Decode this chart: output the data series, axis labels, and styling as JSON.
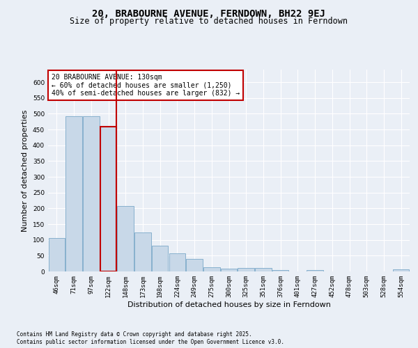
{
  "title1": "20, BRABOURNE AVENUE, FERNDOWN, BH22 9EJ",
  "title2": "Size of property relative to detached houses in Ferndown",
  "xlabel": "Distribution of detached houses by size in Ferndown",
  "ylabel": "Number of detached properties",
  "categories": [
    "46sqm",
    "71sqm",
    "97sqm",
    "122sqm",
    "148sqm",
    "173sqm",
    "198sqm",
    "224sqm",
    "249sqm",
    "275sqm",
    "300sqm",
    "325sqm",
    "351sqm",
    "376sqm",
    "401sqm",
    "427sqm",
    "452sqm",
    "478sqm",
    "503sqm",
    "528sqm",
    "554sqm"
  ],
  "values": [
    106,
    493,
    493,
    460,
    207,
    124,
    82,
    57,
    39,
    13,
    8,
    11,
    11,
    4,
    0,
    5,
    0,
    0,
    0,
    0,
    6
  ],
  "bar_color": "#c8d8e8",
  "bar_edge_color": "#7aa8c8",
  "highlight_bar_index": 3,
  "highlight_bar_edge_color": "#c00000",
  "red_line_x": 3,
  "annotation_title": "20 BRABOURNE AVENUE: 130sqm",
  "annotation_line1": "← 60% of detached houses are smaller (1,250)",
  "annotation_line2": "40% of semi-detached houses are larger (832) →",
  "annotation_box_color": "#ffffff",
  "annotation_box_edge_color": "#c00000",
  "ylim": [
    0,
    640
  ],
  "yticks": [
    0,
    50,
    100,
    150,
    200,
    250,
    300,
    350,
    400,
    450,
    500,
    550,
    600
  ],
  "footnote1": "Contains HM Land Registry data © Crown copyright and database right 2025.",
  "footnote2": "Contains public sector information licensed under the Open Government Licence v3.0.",
  "background_color": "#eaeff6",
  "plot_background_color": "#eaeff6",
  "grid_color": "#ffffff",
  "title_fontsize": 10,
  "subtitle_fontsize": 8.5,
  "tick_fontsize": 6.5,
  "label_fontsize": 8,
  "annot_fontsize": 7,
  "footnote_fontsize": 5.5
}
